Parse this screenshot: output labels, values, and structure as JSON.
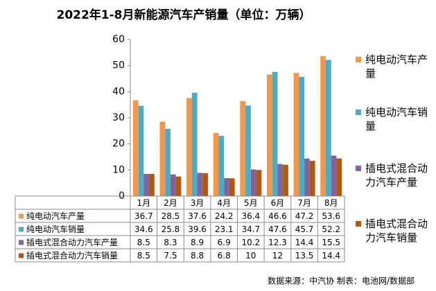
{
  "chart_data": {
    "type": "bar",
    "title": "2022年1-8月新能源汽车产销量（单位：万辆）",
    "categories": [
      "1月",
      "2月",
      "3月",
      "4月",
      "5月",
      "6月",
      "7月",
      "8月"
    ],
    "series": [
      {
        "name": "纯电动汽车产量",
        "color": "#f79646",
        "values": [
          36.7,
          28.5,
          37.6,
          24.2,
          36.4,
          46.6,
          47.2,
          53.6
        ]
      },
      {
        "name": "纯电动汽车销量",
        "color": "#4bacc6",
        "values": [
          34.6,
          25.8,
          39.6,
          23.1,
          34.7,
          47.6,
          45.7,
          52.2
        ]
      },
      {
        "name": "插电式混合动力汽车产量",
        "color": "#8064a2",
        "values": [
          8.5,
          8.3,
          8.9,
          6.9,
          10.2,
          12.3,
          14.4,
          15.5
        ]
      },
      {
        "name": "插电式混合动力汽车销量",
        "color": "#b65708",
        "values": [
          8.5,
          7.5,
          8.8,
          6.8,
          10,
          12,
          13.5,
          14.4
        ]
      }
    ],
    "ylim": [
      0,
      60
    ],
    "yticks": [
      0,
      10,
      20,
      30,
      40,
      50,
      60
    ],
    "grid": false,
    "legend": "right",
    "footnote": "数据来源：中汽协  制表：电池网/数据部"
  }
}
